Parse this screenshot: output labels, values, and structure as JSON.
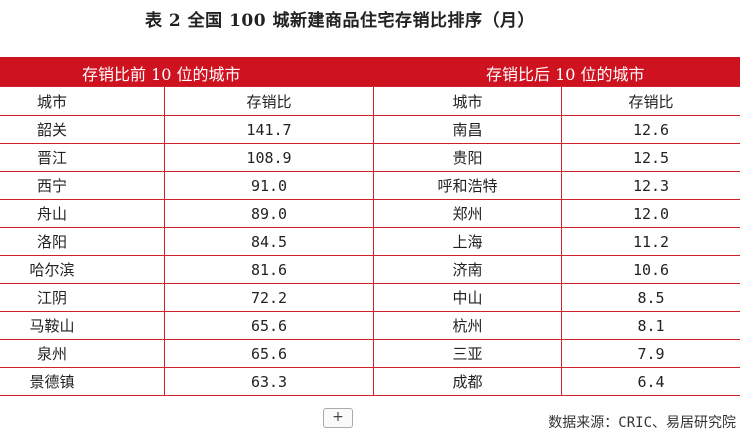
{
  "title": "表 2   全国 100 城新建商品住宅存销比排序（月）",
  "band": {
    "left": "存销比前 10 位的城市",
    "right": "存销比后 10 位的城市",
    "color": "#cf1220"
  },
  "headers": [
    "城市",
    "存销比",
    "城市",
    "存销比"
  ],
  "rows": [
    [
      "韶关",
      "141.7",
      "南昌",
      "12.6"
    ],
    [
      "晋江",
      "108.9",
      "贵阳",
      "12.5"
    ],
    [
      "西宁",
      "91.0",
      "呼和浩特",
      "12.3"
    ],
    [
      "舟山",
      "89.0",
      "郑州",
      "12.0"
    ],
    [
      "洛阳",
      "84.5",
      "上海",
      "11.2"
    ],
    [
      "哈尔滨",
      "81.6",
      "济南",
      "10.6"
    ],
    [
      "江阴",
      "72.2",
      "中山",
      "8.5"
    ],
    [
      "马鞍山",
      "65.6",
      "杭州",
      "8.1"
    ],
    [
      "泉州",
      "65.6",
      "三亚",
      "7.9"
    ],
    [
      "景德镇",
      "63.3",
      "成都",
      "6.4"
    ]
  ],
  "add_button": "+",
  "source": "数据来源：CRIC、易居研究院"
}
